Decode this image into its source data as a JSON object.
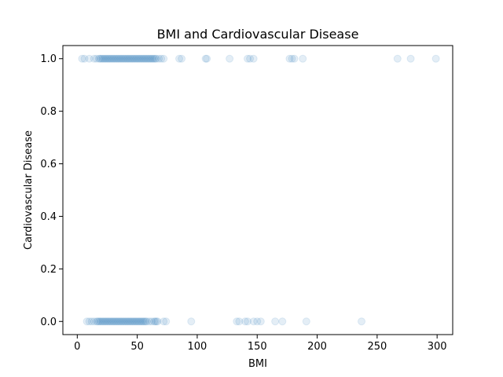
{
  "chart_data": {
    "type": "scatter",
    "title": "BMI and Cardiovascular Disease",
    "xlabel": "BMI",
    "ylabel": "Cardiovascular Disease",
    "xlim": [
      -12,
      313
    ],
    "ylim": [
      -0.05,
      1.05
    ],
    "xticks": [
      0,
      50,
      100,
      150,
      200,
      250,
      300
    ],
    "yticks": [
      0.0,
      0.2,
      0.4,
      0.6,
      0.8,
      1.0
    ],
    "xtick_labels": [
      "0",
      "50",
      "100",
      "150",
      "200",
      "250",
      "300"
    ],
    "ytick_labels": [
      "0.0",
      "0.2",
      "0.4",
      "0.6",
      "0.8",
      "1.0"
    ],
    "grid": false,
    "point_color": "#1f77b4",
    "point_alpha": 0.12,
    "series": [
      {
        "y": 1,
        "x": [
          4,
          6,
          10,
          14,
          16,
          18,
          19,
          20,
          21,
          22,
          23,
          24,
          25,
          26,
          27,
          28,
          29,
          30,
          31,
          32,
          33,
          34,
          35,
          36,
          37,
          38,
          39,
          40,
          41,
          42,
          43,
          44,
          45,
          46,
          47,
          48,
          49,
          50,
          51,
          52,
          53,
          54,
          55,
          56,
          57,
          58,
          59,
          60,
          61,
          62,
          63,
          64,
          65,
          66,
          68,
          70,
          72,
          85,
          87,
          107,
          108,
          127,
          142,
          144,
          147,
          177,
          179,
          181,
          188,
          267,
          278,
          299
        ]
      },
      {
        "y": 0,
        "x": [
          8,
          10,
          12,
          14,
          16,
          17,
          18,
          19,
          20,
          21,
          22,
          23,
          24,
          25,
          26,
          27,
          28,
          29,
          30,
          31,
          32,
          33,
          34,
          35,
          36,
          37,
          38,
          39,
          40,
          41,
          42,
          43,
          44,
          45,
          46,
          47,
          48,
          49,
          50,
          51,
          52,
          53,
          54,
          55,
          56,
          57,
          58,
          60,
          62,
          64,
          65,
          66,
          67,
          72,
          74,
          95,
          133,
          135,
          140,
          142,
          147,
          150,
          153,
          165,
          171,
          191,
          237
        ]
      }
    ]
  }
}
